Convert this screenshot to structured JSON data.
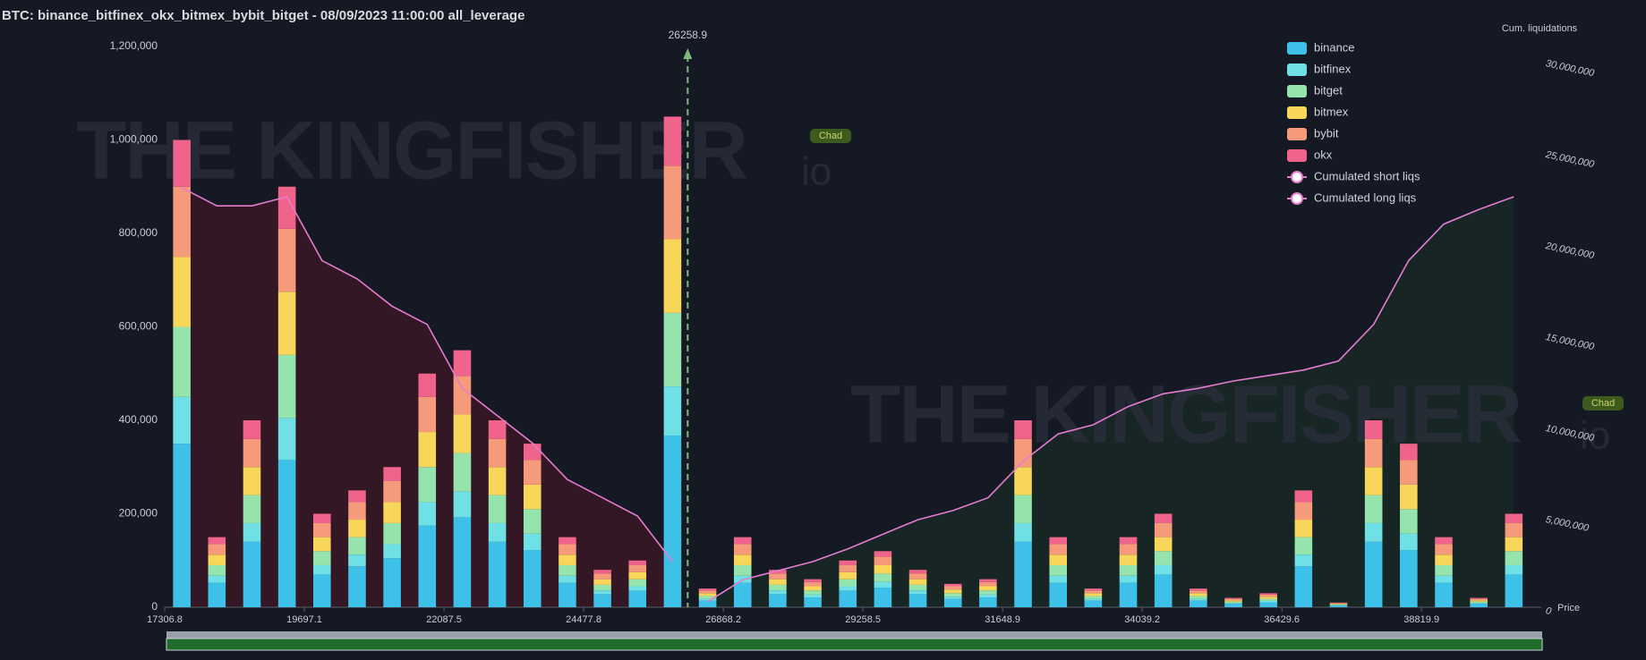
{
  "chart_data": {
    "type": "bar",
    "title": "BTC: binance_bitfinex_okx_bitmex_bybit_bitget - 08/09/2023 11:00:00 all_leverage",
    "x_label": "Price",
    "y2_label": "Cum. liquidations",
    "watermark": "THE KINGFISHER",
    "watermark_suffix": "io",
    "badge": "Chad",
    "current_price": 26258.9,
    "xlim": [
      17306.8,
      40870
    ],
    "xticks": [
      17306.8,
      19697.1,
      22087.5,
      24477.8,
      26868.2,
      29258.5,
      31648.9,
      34039.2,
      36429.6,
      38819.9
    ],
    "ylim": [
      0,
      1200000
    ],
    "yticks": [
      0,
      {
        "value": 200000,
        "label": "200,000"
      },
      {
        "value": 400000,
        "label": "400,000"
      },
      {
        "value": 600000,
        "label": "600,000"
      },
      {
        "value": 800000,
        "label": "800,000"
      },
      {
        "value": 1000000,
        "label": "1,000,000"
      },
      {
        "value": 1200000,
        "label": "1,200,000"
      }
    ],
    "y2lim": [
      0,
      30000000
    ],
    "y2ticks": [
      0,
      {
        "value": 5000000,
        "label": "5,000,000"
      },
      {
        "value": 10000000,
        "label": "10,000,000"
      },
      {
        "value": 15000000,
        "label": "15,000,000"
      },
      {
        "value": 20000000,
        "label": "20,000,000"
      },
      {
        "value": 25000000,
        "label": "25,000,000"
      },
      {
        "value": 30000000,
        "label": "30,000,000"
      }
    ],
    "x": [
      17600,
      18200,
      18800,
      19400,
      20000,
      20600,
      21200,
      21800,
      22400,
      23000,
      23600,
      24200,
      24800,
      25400,
      26000,
      26600,
      27200,
      27800,
      28400,
      29000,
      29600,
      30200,
      30800,
      31400,
      32000,
      32600,
      33200,
      33800,
      34400,
      35000,
      35600,
      36200,
      36800,
      37400,
      38000,
      38600,
      39200,
      39800,
      40400
    ],
    "series": [
      {
        "name": "binance",
        "color": "#3ec1e8",
        "values": [
          350000,
          52500,
          140000,
          315000,
          70000,
          87500,
          105000,
          175000,
          192500,
          140000,
          122500,
          52500,
          28000,
          35000,
          367500,
          14000,
          52500,
          28000,
          21000,
          35000,
          42000,
          28000,
          17500,
          21000,
          140000,
          52500,
          14000,
          52500,
          70000,
          14000,
          7000,
          10500,
          87500,
          3500,
          140000,
          122500,
          52500,
          7000,
          70000
        ]
      },
      {
        "name": "bitfinex",
        "color": "#6fe0e6",
        "values": [
          100000,
          15000,
          40000,
          90000,
          20000,
          25000,
          30000,
          50000,
          55000,
          40000,
          35000,
          15000,
          8000,
          10000,
          105000,
          4000,
          15000,
          8000,
          6000,
          10000,
          12000,
          8000,
          5000,
          6000,
          40000,
          15000,
          4000,
          15000,
          20000,
          4000,
          2000,
          3000,
          25000,
          1000,
          40000,
          35000,
          15000,
          2000,
          20000
        ]
      },
      {
        "name": "bitget",
        "color": "#95e3ad",
        "values": [
          150000,
          22500,
          60000,
          135000,
          30000,
          37500,
          45000,
          75000,
          82500,
          60000,
          52500,
          22500,
          12000,
          15000,
          157500,
          6000,
          22500,
          12000,
          9000,
          15000,
          18000,
          12000,
          7500,
          9000,
          60000,
          22500,
          6000,
          22500,
          30000,
          6000,
          3000,
          4500,
          37500,
          1500,
          60000,
          52500,
          22500,
          3000,
          30000
        ]
      },
      {
        "name": "bitmex",
        "color": "#f7d65a",
        "values": [
          150000,
          22500,
          60000,
          135000,
          30000,
          37500,
          45000,
          75000,
          82500,
          60000,
          52500,
          22500,
          12000,
          15000,
          157500,
          6000,
          22500,
          12000,
          9000,
          15000,
          18000,
          12000,
          7500,
          9000,
          60000,
          22500,
          6000,
          22500,
          30000,
          6000,
          3000,
          4500,
          37500,
          1500,
          60000,
          52500,
          22500,
          3000,
          30000
        ]
      },
      {
        "name": "bybit",
        "color": "#f59a7a",
        "values": [
          150000,
          22500,
          60000,
          135000,
          30000,
          37500,
          45000,
          75000,
          82500,
          60000,
          52500,
          22500,
          12000,
          15000,
          157500,
          6000,
          22500,
          12000,
          9000,
          15000,
          18000,
          12000,
          7500,
          9000,
          60000,
          22500,
          6000,
          22500,
          30000,
          6000,
          3000,
          4500,
          37500,
          1500,
          60000,
          52500,
          22500,
          3000,
          30000
        ]
      },
      {
        "name": "okx",
        "color": "#f0648c",
        "values": [
          100000,
          15000,
          40000,
          90000,
          20000,
          25000,
          30000,
          50000,
          55000,
          40000,
          35000,
          15000,
          8000,
          10000,
          105000,
          4000,
          15000,
          8000,
          6000,
          10000,
          12000,
          8000,
          5000,
          6000,
          40000,
          15000,
          4000,
          15000,
          20000,
          4000,
          2000,
          3000,
          25000,
          1000,
          40000,
          35000,
          15000,
          2000,
          20000
        ]
      },
      {
        "name": "Cumulated short liqs",
        "type": "line",
        "axis": "y2",
        "color": "#e57ccf",
        "values": [
          null,
          null,
          null,
          null,
          null,
          null,
          null,
          null,
          null,
          null,
          null,
          null,
          null,
          null,
          null,
          300000,
          1500000,
          2000000,
          2500000,
          3200000,
          4000000,
          4800000,
          5300000,
          6000000,
          8000000,
          9500000,
          10000000,
          11000000,
          11700000,
          12000000,
          12400000,
          12700000,
          13000000,
          13500000,
          15500000,
          19000000,
          21000000,
          21800000,
          22500000
        ]
      },
      {
        "name": "Cumulated long liqs",
        "type": "line",
        "axis": "y2",
        "color": "#e57ccf",
        "values": [
          23000000,
          22000000,
          22000000,
          22500000,
          19000000,
          18000000,
          16500000,
          15500000,
          12000000,
          10500000,
          9000000,
          7000000,
          6000000,
          5000000,
          2500000,
          null,
          null,
          null,
          null,
          null,
          null,
          null,
          null,
          null,
          null,
          null,
          null,
          null,
          null,
          null,
          null,
          null,
          null,
          null,
          null,
          null,
          null,
          null,
          null
        ]
      }
    ]
  }
}
